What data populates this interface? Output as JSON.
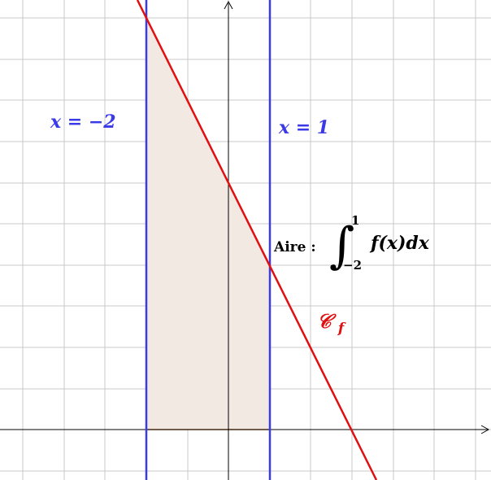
{
  "labels": {
    "left_line": "x = −2",
    "right_line": "x = 1",
    "curve_name": "𝒞",
    "curve_sub": "f",
    "area_label": "Aire :",
    "integral_sign": "∫",
    "integral_upper": "1",
    "integral_lower": "−2",
    "integrand": "f(x)dx"
  },
  "colors": {
    "vertical_lines": "#3a3ae6",
    "curve": "#e01010",
    "area_fill": "#f2e9e3",
    "axes": "#000000",
    "grid": "#c8c8c8"
  },
  "icons": {
    "x_axis_arrow": "arrow-right-icon",
    "y_axis_arrow": "arrow-up-icon"
  }
}
